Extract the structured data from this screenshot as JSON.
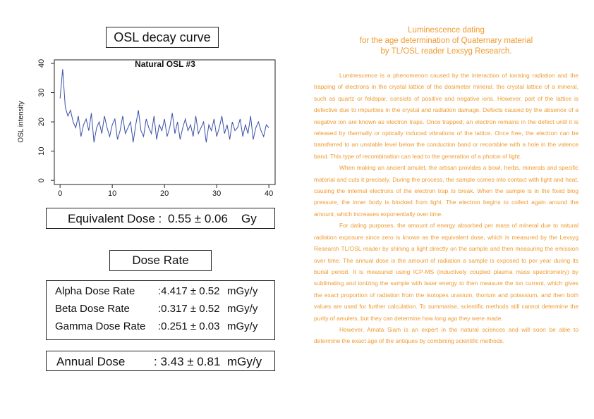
{
  "chart_data": {
    "type": "line",
    "heading": "OSL decay curve",
    "title": "Natural OSL #3",
    "y_label": "OSL intensity",
    "x": [
      0,
      0.5,
      1,
      1.5,
      2,
      2.5,
      3,
      3.5,
      4,
      4.5,
      5,
      5.5,
      6,
      6.5,
      7,
      7.5,
      8,
      8.5,
      9,
      9.5,
      10,
      10.5,
      11,
      11.5,
      12,
      12.5,
      13,
      13.5,
      14,
      14.5,
      15,
      15.5,
      16,
      16.5,
      17,
      17.5,
      18,
      18.5,
      19,
      19.5,
      20,
      20.5,
      21,
      21.5,
      22,
      22.5,
      23,
      23.5,
      24,
      24.5,
      25,
      25.5,
      26,
      26.5,
      27,
      27.5,
      28,
      28.5,
      29,
      29.5,
      30,
      30.5,
      31,
      31.5,
      32,
      32.5,
      33,
      33.5,
      34,
      34.5,
      35,
      35.5,
      36,
      36.5,
      37,
      37.5,
      38,
      38.5,
      39,
      39.5,
      40
    ],
    "series": [
      {
        "color": "#3a4fa6",
        "values": [
          28,
          38,
          25,
          22,
          24,
          20,
          18,
          22,
          15,
          19,
          21,
          17,
          23,
          13,
          18,
          20,
          16,
          22,
          18,
          15,
          19,
          21,
          14,
          17,
          22,
          16,
          18,
          20,
          13,
          19,
          24,
          17,
          15,
          21,
          18,
          16,
          22,
          14,
          19,
          17,
          21,
          15,
          18,
          23,
          16,
          20,
          14,
          18,
          21,
          17,
          19,
          15,
          22,
          16,
          18,
          20,
          13,
          19,
          17,
          21,
          15,
          18,
          22,
          16,
          19,
          14,
          20,
          17,
          18,
          21,
          15,
          19,
          16,
          22,
          14,
          18,
          20,
          17,
          15,
          19,
          18
        ]
      }
    ],
    "xlim": [
      -1.1,
      41.2
    ],
    "ylim": [
      -1.4,
      41.2
    ],
    "xticks": [
      0,
      10,
      20,
      30,
      40
    ],
    "yticks": [
      0,
      10,
      20,
      30,
      40
    ]
  },
  "equivalent_dose": {
    "label": "Equivalent Dose :",
    "value": "0.55 ± 0.06",
    "unit": "Gy"
  },
  "dose_rate": {
    "heading": "Dose Rate",
    "rows": [
      {
        "label": "Alpha Dose Rate",
        "value": ":4.417 ± 0.52",
        "unit": "mGy/y"
      },
      {
        "label": "Beta Dose Rate",
        "value": ":0.317 ± 0.52",
        "unit": "mGy/y"
      },
      {
        "label": "Gamma Dose Rate",
        "value": ":0.251 ± 0.03",
        "unit": "mGy/y"
      }
    ]
  },
  "annual_dose": {
    "label": "Annual Dose",
    "value": ": 3.43 ± 0.81",
    "unit": "mGy/y"
  },
  "article": {
    "heading": [
      "Luminescence dating",
      "for the age determination of Quaternary material",
      "by TL/OSL reader Lexsyg Research."
    ],
    "paragraphs": [
      "Luminescence is a phenomenon caused by the interaction of ionising radiation and the trapping of electrons in the crystal lattice of the dosimeter mineral. the crystal lattice of a mineral, such as quartz or feldspar, consists of positive and negative ions. However, part of the lattice is defective due to impurities in the crystal and radiation damage. Defects caused by the absence of a negative ion are known as electron traps. Once trapped, an electron remains in the defect until it is released by thermally or optically induced vibrations of the lattice. Once free, the electron can be transferred to an unstable level below the conduction band or recombine with a hole in the valence band. This type of recombination can lead to the generation of a photon of light.",
      "When making an ancient amulet, the artisan provides a bowl, herbs, minerals and specific material and cuts it precisely. During the process, the sample comes into contact with light and heat, causing the internal electrons of the electron trap to break. When the sample is in the fixed blog pressure, the inner body is blocked from light. The electron begins to collect again around the amount, which increases exponentially over time.",
      "For dating purposes, the amount of energy absorbed per mass of mineral due to natural radiation exposure since zero is known as the equivalent dose, which is measured by the Lexsyg Research TL/OSL reader by shining a light directly on the sample and then measuring the emission over time. The annual dose is the amount of radiation a sample is exposed to per year during its burial period. It is measured using ICP-MS (inductively coupled plasma mass spectrometry) by sublimating and ionizing the sample with laser energy to then measure the ion current, which gives the exact proportion of radiation from the isotopes uranium, thorium and potassium, and then both values are used for further calculation. To summarise, scientific methods still cannot determine the purity of amulets, but they can determine how long ago they were made.",
      "However, Amata Siam is an expert in the natural sciences and will soon be able to determine the exact age of the antiques by combining scientific methods."
    ]
  }
}
